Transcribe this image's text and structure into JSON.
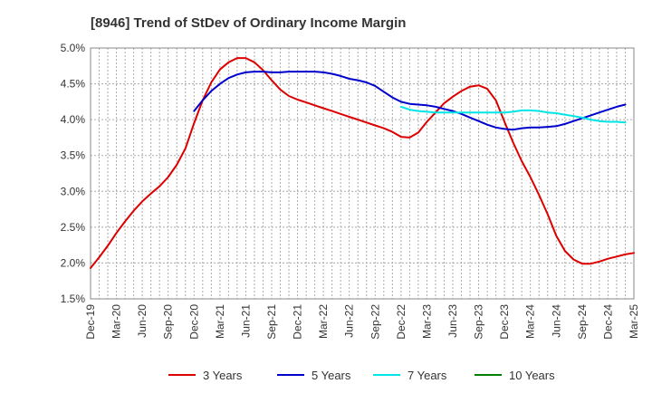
{
  "chart_data": {
    "type": "line",
    "title": "[8946]  Trend of StDev of Ordinary Income Margin",
    "xlabel": "",
    "ylabel": "",
    "x_ticks": [
      "Dec-19",
      "Mar-20",
      "Jun-20",
      "Sep-20",
      "Dec-20",
      "Mar-21",
      "Jun-21",
      "Sep-21",
      "Dec-21",
      "Mar-22",
      "Jun-22",
      "Sep-22",
      "Dec-22",
      "Mar-23",
      "Jun-23",
      "Sep-23",
      "Dec-23",
      "Mar-24",
      "Jun-24",
      "Sep-24",
      "Dec-24",
      "Mar-25"
    ],
    "y_ticks": [
      "1.5%",
      "2.0%",
      "2.5%",
      "3.0%",
      "3.5%",
      "4.0%",
      "4.5%",
      "5.0%"
    ],
    "ylim": [
      1.5,
      5.0
    ],
    "grid": true,
    "legend_position": "bottom",
    "series": [
      {
        "name": "3 Years",
        "color": "#dd0000",
        "points": [
          [
            "Dec-19",
            1.93
          ],
          [
            "Jan-20",
            2.08
          ],
          [
            "Feb-20",
            2.24
          ],
          [
            "Mar-20",
            2.42
          ],
          [
            "Apr-20",
            2.58
          ],
          [
            "May-20",
            2.73
          ],
          [
            "Jun-20",
            2.86
          ],
          [
            "Jul-20",
            2.97
          ],
          [
            "Aug-20",
            3.07
          ],
          [
            "Sep-20",
            3.2
          ],
          [
            "Oct-20",
            3.37
          ],
          [
            "Nov-20",
            3.6
          ],
          [
            "Dec-20",
            3.95
          ],
          [
            "Jan-21",
            4.27
          ],
          [
            "Feb-21",
            4.52
          ],
          [
            "Mar-21",
            4.7
          ],
          [
            "Apr-21",
            4.8
          ],
          [
            "May-21",
            4.86
          ],
          [
            "Jun-21",
            4.86
          ],
          [
            "Jul-21",
            4.8
          ],
          [
            "Aug-21",
            4.69
          ],
          [
            "Sep-21",
            4.55
          ],
          [
            "Oct-21",
            4.42
          ],
          [
            "Nov-21",
            4.33
          ],
          [
            "Dec-21",
            4.28
          ],
          [
            "Jan-22",
            4.24
          ],
          [
            "Feb-22",
            4.2
          ],
          [
            "Mar-22",
            4.16
          ],
          [
            "Apr-22",
            4.12
          ],
          [
            "May-22",
            4.08
          ],
          [
            "Jun-22",
            4.04
          ],
          [
            "Jul-22",
            4.0
          ],
          [
            "Aug-22",
            3.96
          ],
          [
            "Sep-22",
            3.92
          ],
          [
            "Oct-22",
            3.88
          ],
          [
            "Nov-22",
            3.83
          ],
          [
            "Dec-22",
            3.76
          ],
          [
            "Jan-23",
            3.75
          ],
          [
            "Feb-23",
            3.82
          ],
          [
            "Mar-23",
            3.97
          ],
          [
            "Apr-23",
            4.1
          ],
          [
            "May-23",
            4.23
          ],
          [
            "Jun-23",
            4.32
          ],
          [
            "Jul-23",
            4.4
          ],
          [
            "Aug-23",
            4.46
          ],
          [
            "Sep-23",
            4.48
          ],
          [
            "Oct-23",
            4.43
          ],
          [
            "Nov-23",
            4.27
          ],
          [
            "Dec-23",
            3.97
          ],
          [
            "Jan-24",
            3.68
          ],
          [
            "Feb-24",
            3.42
          ],
          [
            "Mar-24",
            3.2
          ],
          [
            "Apr-24",
            2.95
          ],
          [
            "May-24",
            2.68
          ],
          [
            "Jun-24",
            2.38
          ],
          [
            "Jul-24",
            2.17
          ],
          [
            "Aug-24",
            2.05
          ],
          [
            "Sep-24",
            1.99
          ],
          [
            "Oct-24",
            1.99
          ],
          [
            "Nov-24",
            2.02
          ],
          [
            "Dec-24",
            2.06
          ],
          [
            "Jan-25",
            2.09
          ],
          [
            "Feb-25",
            2.12
          ],
          [
            "Mar-25",
            2.14
          ]
        ]
      },
      {
        "name": "5 Years",
        "color": "#0000cc",
        "points": [
          [
            "Dec-20",
            4.12
          ],
          [
            "Jan-21",
            4.27
          ],
          [
            "Feb-21",
            4.4
          ],
          [
            "Mar-21",
            4.5
          ],
          [
            "Apr-21",
            4.58
          ],
          [
            "May-21",
            4.63
          ],
          [
            "Jun-21",
            4.66
          ],
          [
            "Jul-21",
            4.67
          ],
          [
            "Aug-21",
            4.67
          ],
          [
            "Sep-21",
            4.66
          ],
          [
            "Oct-21",
            4.66
          ],
          [
            "Nov-21",
            4.67
          ],
          [
            "Dec-21",
            4.67
          ],
          [
            "Jan-22",
            4.67
          ],
          [
            "Feb-22",
            4.67
          ],
          [
            "Mar-22",
            4.66
          ],
          [
            "Apr-22",
            4.64
          ],
          [
            "May-22",
            4.61
          ],
          [
            "Jun-22",
            4.57
          ],
          [
            "Jul-22",
            4.55
          ],
          [
            "Aug-22",
            4.52
          ],
          [
            "Sep-22",
            4.47
          ],
          [
            "Oct-22",
            4.39
          ],
          [
            "Nov-22",
            4.31
          ],
          [
            "Dec-22",
            4.25
          ],
          [
            "Jan-23",
            4.22
          ],
          [
            "Feb-23",
            4.21
          ],
          [
            "Mar-23",
            4.2
          ],
          [
            "Apr-23",
            4.18
          ],
          [
            "May-23",
            4.15
          ],
          [
            "Jun-23",
            4.12
          ],
          [
            "Jul-23",
            4.08
          ],
          [
            "Aug-23",
            4.03
          ],
          [
            "Sep-23",
            3.98
          ],
          [
            "Oct-23",
            3.93
          ],
          [
            "Nov-23",
            3.89
          ],
          [
            "Dec-23",
            3.87
          ],
          [
            "Jan-24",
            3.86
          ],
          [
            "Feb-24",
            3.88
          ],
          [
            "Mar-24",
            3.89
          ],
          [
            "Apr-24",
            3.89
          ],
          [
            "May-24",
            3.9
          ],
          [
            "Jun-24",
            3.91
          ],
          [
            "Jul-24",
            3.94
          ],
          [
            "Aug-24",
            3.98
          ],
          [
            "Sep-24",
            4.02
          ],
          [
            "Oct-24",
            4.06
          ],
          [
            "Nov-24",
            4.1
          ],
          [
            "Dec-24",
            4.14
          ],
          [
            "Jan-25",
            4.18
          ],
          [
            "Feb-25",
            4.21
          ]
        ]
      },
      {
        "name": "7 Years",
        "color": "#00e5e5",
        "points": [
          [
            "Dec-22",
            4.18
          ],
          [
            "Jan-23",
            4.14
          ],
          [
            "Feb-23",
            4.12
          ],
          [
            "Mar-23",
            4.11
          ],
          [
            "Apr-23",
            4.1
          ],
          [
            "May-23",
            4.1
          ],
          [
            "Jun-23",
            4.1
          ],
          [
            "Jul-23",
            4.1
          ],
          [
            "Aug-23",
            4.1
          ],
          [
            "Sep-23",
            4.1
          ],
          [
            "Oct-23",
            4.1
          ],
          [
            "Nov-23",
            4.1
          ],
          [
            "Dec-23",
            4.1
          ],
          [
            "Jan-24",
            4.11
          ],
          [
            "Feb-24",
            4.13
          ],
          [
            "Mar-24",
            4.13
          ],
          [
            "Apr-24",
            4.12
          ],
          [
            "May-24",
            4.1
          ],
          [
            "Jun-24",
            4.09
          ],
          [
            "Jul-24",
            4.07
          ],
          [
            "Aug-24",
            4.05
          ],
          [
            "Sep-24",
            4.03
          ],
          [
            "Oct-24",
            4.0
          ],
          [
            "Nov-24",
            3.98
          ],
          [
            "Dec-24",
            3.97
          ],
          [
            "Jan-25",
            3.97
          ],
          [
            "Feb-25",
            3.96
          ]
        ]
      },
      {
        "name": "10 Years",
        "color": "#008000",
        "points": []
      }
    ]
  }
}
